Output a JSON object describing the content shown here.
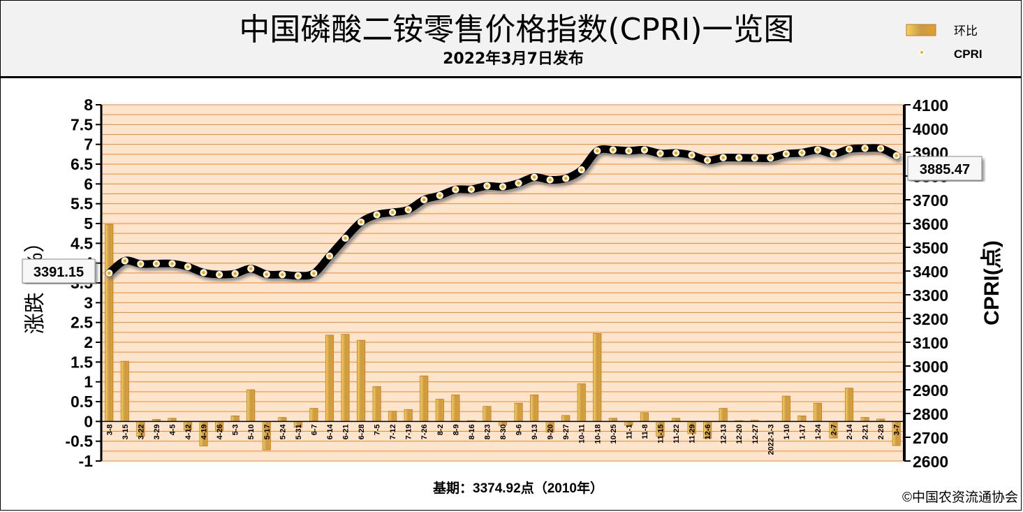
{
  "header": {
    "title": "中国磷酸二铵零售价格指数(CPRI)一览图",
    "subtitle": "2022年3月7日发布"
  },
  "footer": {
    "base_period": "基期：3374.92点（2010年）",
    "copyright": "©中国农资流通协会"
  },
  "colors": {
    "plot_bg": "#fde4cd",
    "grid": "#f08a2e",
    "bar": "#d99a3d",
    "bar_edge": "#c0781f",
    "line": "#000000",
    "marker_fill": "#fff2c0",
    "marker_dot": "#f0a020"
  },
  "chart_data": {
    "type": "bar+line",
    "title": "中国磷酸二铵零售价格指数(CPRI)一览图",
    "ylabel_left": "涨跌（%）",
    "ylabel_right": "CPRI(点)",
    "ylim_left": [
      -1,
      8
    ],
    "ylim_right": [
      2600,
      4100
    ],
    "yticks_left": [
      "-1",
      "-0.5",
      "0",
      "0.5",
      "1",
      "1.5",
      "2",
      "2.5",
      "3",
      "3.5",
      "4",
      "4.5",
      "5",
      "5.5",
      "6",
      "6.5",
      "7",
      "7.5",
      "8"
    ],
    "yticks_right": [
      "2600",
      "2700",
      "2800",
      "2900",
      "3000",
      "3100",
      "3200",
      "3300",
      "3400",
      "3500",
      "3600",
      "3700",
      "3800",
      "3900",
      "4000",
      "4100"
    ],
    "categories": [
      "3-8",
      "3-15",
      "3-22",
      "3-29",
      "4-5",
      "4-12",
      "4-19",
      "4-26",
      "5-3",
      "5-10",
      "5-17",
      "5-24",
      "5-31",
      "6-7",
      "6-14",
      "6-21",
      "6-28",
      "7-5",
      "7-12",
      "7-19",
      "7-26",
      "8-2",
      "8-9",
      "8-16",
      "8-23",
      "8-30",
      "9-6",
      "9-13",
      "9-20",
      "9-27",
      "10-11",
      "10-18",
      "10-25",
      "11-1",
      "11-8",
      "11-15",
      "11-22",
      "11-29",
      "12-6",
      "12-13",
      "12-20",
      "12-27",
      "2022-1-3",
      "1-10",
      "1-17",
      "1-24",
      "2-7",
      "2-14",
      "2-21",
      "2-28",
      "3-7"
    ],
    "series": [
      {
        "name": "环比",
        "type": "bar",
        "values": [
          4.98,
          1.52,
          -0.38,
          0.05,
          0.08,
          -0.22,
          -0.62,
          -0.25,
          0.14,
          0.8,
          -0.72,
          0.1,
          -0.15,
          0.33,
          2.18,
          2.2,
          2.05,
          0.88,
          0.26,
          0.3,
          1.15,
          0.56,
          0.67,
          0.02,
          0.38,
          -0.1,
          0.46,
          0.67,
          -0.27,
          0.15,
          0.95,
          2.22,
          0.08,
          -0.1,
          0.22,
          -0.38,
          0.08,
          -0.31,
          -0.43,
          0.33,
          0.02,
          0.03,
          0.01,
          0.64,
          0.14,
          0.46,
          -0.42,
          0.84,
          0.1,
          0.06,
          -0.61
        ]
      },
      {
        "name": "CPRI",
        "type": "line",
        "values": [
          3391.15,
          3443,
          3430,
          3431,
          3431,
          3418,
          3393,
          3385,
          3389,
          3410,
          3386,
          3385,
          3380,
          3390,
          3463,
          3538,
          3606,
          3637,
          3647,
          3658,
          3700,
          3718,
          3743,
          3744,
          3758,
          3755,
          3770,
          3795,
          3784,
          3790,
          3826,
          3906,
          3910,
          3906,
          3910,
          3895,
          3897,
          3888,
          3866,
          3877,
          3877,
          3876,
          3876,
          3893,
          3898,
          3910,
          3893,
          3913,
          3917,
          3916,
          3885.47
        ]
      }
    ],
    "annotations": [
      "3391.15",
      "3885.47"
    ],
    "legend": {
      "placement": "top-right",
      "items": [
        {
          "label": "环比",
          "kind": "bar"
        },
        {
          "label": "CPRI",
          "kind": "line"
        }
      ]
    },
    "grid": true
  }
}
